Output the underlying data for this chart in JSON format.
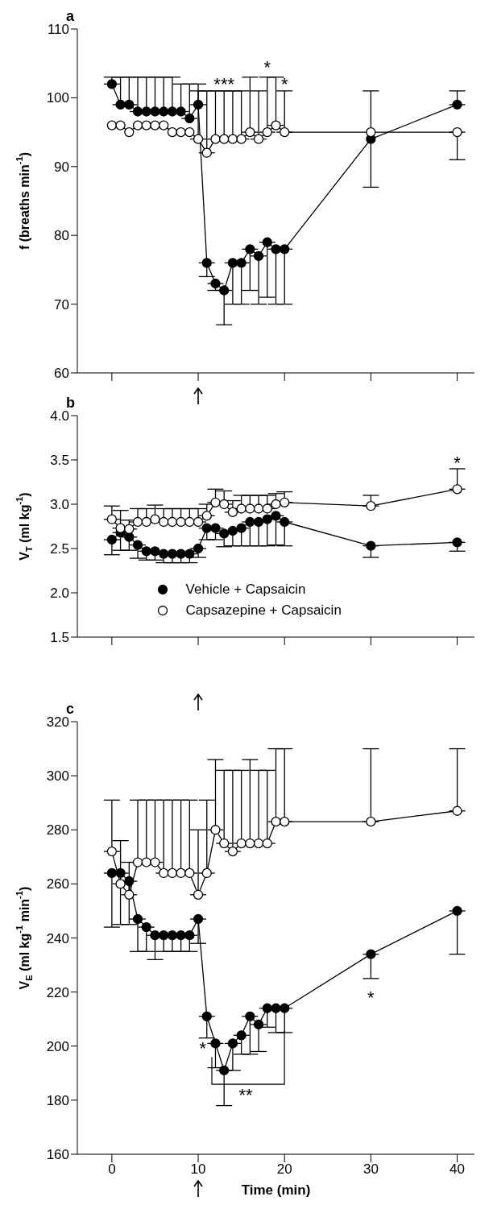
{
  "chart_data": [
    {
      "type": "line",
      "title": "a",
      "ylabel": "f (breaths min$^{-1}$)",
      "x": [
        0,
        1,
        2,
        3,
        4,
        5,
        6,
        7,
        8,
        9,
        10,
        11,
        12,
        13,
        14,
        15,
        16,
        17,
        18,
        19,
        20,
        30,
        40
      ],
      "xlim": [
        -4,
        42
      ],
      "xticks": [
        0,
        10,
        20,
        30,
        40
      ],
      "ylim": [
        60,
        110
      ],
      "yticks": [
        60,
        70,
        80,
        90,
        100,
        110
      ],
      "tick_labels": "y",
      "marker": "circle",
      "line_style": "solid",
      "legend": false,
      "series": [
        {
          "color": "#000000",
          "values": [
            102,
            99,
            99,
            98,
            98,
            98,
            98,
            98,
            98,
            97,
            99,
            76,
            73,
            72,
            76,
            76,
            78,
            77,
            79,
            78,
            78,
            94,
            99
          ],
          "errors": [
            [
              102,
              103
            ],
            [
              99,
              103
            ],
            [
              99,
              103
            ],
            [
              98,
              103
            ],
            [
              98,
              103
            ],
            [
              98,
              103
            ],
            [
              98,
              103
            ],
            [
              98,
              103
            ],
            [
              98,
              102
            ],
            [
              97,
              102
            ],
            [
              99,
              102
            ],
            [
              74,
              76
            ],
            [
              72,
              73
            ],
            [
              67,
              72
            ],
            [
              70,
              76
            ],
            [
              70,
              76
            ],
            [
              72,
              78
            ],
            [
              70,
              77
            ],
            [
              71,
              79
            ],
            [
              70,
              78
            ],
            [
              70,
              78
            ],
            [
              87,
              101
            ],
            [
              99,
              101
            ]
          ]
        },
        {
          "color": "#000000",
          "values": [
            96,
            96,
            95,
            96,
            96,
            96,
            96,
            95,
            95,
            95,
            94,
            92,
            94,
            94,
            94,
            94,
            95,
            94,
            95,
            96,
            95,
            95,
            95
          ],
          "errors": [
            null,
            null,
            null,
            null,
            null,
            null,
            null,
            null,
            null,
            null,
            [
              94,
              101
            ],
            [
              92,
              101
            ],
            [
              94,
              101
            ],
            [
              94,
              101
            ],
            [
              94,
              101
            ],
            [
              94,
              101
            ],
            [
              95,
              103
            ],
            [
              94,
              101
            ],
            [
              95,
              103
            ],
            [
              96,
              103
            ],
            [
              95,
              101
            ],
            null,
            [
              91,
              95
            ]
          ]
        }
      ],
      "annotations": [
        "***",
        "*",
        "*"
      ]
    },
    {
      "type": "line",
      "title": "b",
      "ylabel": "V$_{T}$ (ml kg$^{-1}$)",
      "x": [
        0,
        1,
        2,
        3,
        4,
        5,
        6,
        7,
        8,
        9,
        10,
        11,
        12,
        13,
        14,
        15,
        16,
        17,
        18,
        19,
        20,
        30,
        40
      ],
      "xlim": [
        -4,
        42
      ],
      "xticks": [
        0,
        10,
        20,
        30,
        40
      ],
      "ylim": [
        1.5,
        4.0
      ],
      "yticks": [
        {
          "value": 1.5,
          "label": "1.5"
        },
        {
          "value": 2,
          "label": "2.0"
        },
        {
          "value": 2.5,
          "label": "2.5"
        },
        {
          "value": 3,
          "label": "3.0"
        },
        {
          "value": 3.5,
          "label": "3.5"
        },
        {
          "value": 4,
          "label": "4.0"
        }
      ],
      "tick_labels": "y",
      "marker": "circle",
      "line_style": "solid",
      "legend": "bottom",
      "series": [
        {
          "name": "Vehicle + Capsaicin",
          "color": "#000000",
          "values": [
            2.6,
            2.68,
            2.63,
            2.54,
            2.47,
            2.47,
            2.44,
            2.44,
            2.44,
            2.44,
            2.5,
            2.73,
            2.73,
            2.67,
            2.7,
            2.73,
            2.8,
            2.8,
            2.83,
            2.87,
            2.8,
            2.53,
            2.57
          ],
          "errors": [
            [
              2.43,
              2.6
            ],
            [
              2.48,
              2.68
            ],
            [
              2.48,
              2.63
            ],
            [
              2.39,
              2.54
            ],
            [
              2.37,
              2.47
            ],
            [
              2.37,
              2.47
            ],
            [
              2.34,
              2.44
            ],
            [
              2.34,
              2.44
            ],
            [
              2.34,
              2.44
            ],
            [
              2.34,
              2.44
            ],
            [
              2.4,
              2.5
            ],
            [
              2.6,
              2.73
            ],
            [
              2.6,
              2.73
            ],
            [
              2.52,
              2.67
            ],
            [
              2.53,
              2.7
            ],
            [
              2.53,
              2.73
            ],
            [
              2.53,
              2.8
            ],
            [
              2.53,
              2.8
            ],
            [
              2.53,
              2.83
            ],
            [
              2.54,
              2.87
            ],
            [
              2.53,
              2.8
            ],
            [
              2.4,
              2.53
            ],
            [
              2.47,
              2.57
            ]
          ]
        },
        {
          "name": "Capsazepine + Capsaicin",
          "color": "#000000",
          "values": [
            2.83,
            2.73,
            2.72,
            2.8,
            2.8,
            2.83,
            2.8,
            2.8,
            2.8,
            2.8,
            2.8,
            2.87,
            3.02,
            3.0,
            2.91,
            2.95,
            2.95,
            2.95,
            2.95,
            3.0,
            3.02,
            2.98,
            3.17
          ],
          "errors": [
            [
              2.83,
              2.98
            ],
            [
              2.73,
              2.93
            ],
            [
              2.72,
              2.82
            ],
            [
              2.8,
              2.95
            ],
            [
              2.8,
              2.95
            ],
            [
              2.83,
              2.99
            ],
            [
              2.8,
              2.95
            ],
            [
              2.8,
              2.95
            ],
            [
              2.8,
              2.95
            ],
            [
              2.8,
              2.95
            ],
            [
              2.8,
              2.95
            ],
            [
              2.87,
              3.0
            ],
            [
              3.02,
              3.17
            ],
            [
              3.0,
              3.15
            ],
            [
              2.91,
              3.04
            ],
            [
              2.95,
              3.1
            ],
            [
              2.95,
              3.1
            ],
            [
              2.95,
              3.1
            ],
            [
              2.95,
              3.1
            ],
            [
              3.0,
              3.12
            ],
            [
              3.02,
              3.14
            ],
            [
              2.98,
              3.1
            ],
            [
              3.17,
              3.4
            ]
          ]
        }
      ],
      "annotations": [
        "*"
      ]
    },
    {
      "type": "line",
      "title": "c",
      "xlabel": "Time (min)",
      "ylabel": "V$_{E}$ (ml kg$^{-1}$ min$^{-1}$)",
      "x": [
        0,
        1,
        2,
        3,
        4,
        5,
        6,
        7,
        8,
        9,
        10,
        11,
        12,
        13,
        14,
        15,
        16,
        17,
        18,
        19,
        20,
        30,
        40
      ],
      "xlim": [
        -4,
        42
      ],
      "xticks": [
        0,
        10,
        20,
        30,
        40
      ],
      "ylim": [
        160,
        320
      ],
      "yticks": [
        160,
        180,
        200,
        220,
        240,
        260,
        280,
        300,
        320
      ],
      "marker": "circle",
      "line_style": "solid",
      "legend": false,
      "series": [
        {
          "color": "#000000",
          "values": [
            264,
            264,
            261,
            247,
            244,
            241,
            241,
            241,
            241,
            241,
            247,
            211,
            201,
            191,
            201,
            204,
            211,
            208,
            214,
            214,
            214,
            234,
            250
          ],
          "errors": [
            [
              244,
              264
            ],
            [
              245,
              264
            ],
            [
              245,
              261
            ],
            [
              235,
              247
            ],
            [
              235,
              244
            ],
            [
              232,
              241
            ],
            [
              235,
              241
            ],
            [
              235,
              241
            ],
            [
              235,
              241
            ],
            [
              235,
              241
            ],
            [
              238,
              247
            ],
            [
              203,
              211
            ],
            [
              192,
              201
            ],
            [
              178,
              191
            ],
            [
              191,
              201
            ],
            [
              197,
              204
            ],
            [
              197,
              211
            ],
            [
              198,
              208
            ],
            [
              207,
              214
            ],
            [
              205,
              214
            ],
            [
              205,
              214
            ],
            [
              225,
              234
            ],
            [
              234,
              250
            ]
          ]
        },
        {
          "color": "#000000",
          "values": [
            272,
            260,
            256,
            268,
            268,
            268,
            264,
            264,
            264,
            264,
            256,
            264,
            280,
            275,
            272,
            275,
            275,
            275,
            275,
            283,
            283,
            283,
            287
          ],
          "errors": [
            [
              272,
              291
            ],
            [
              260,
              276
            ],
            [
              256,
              268
            ],
            [
              268,
              291
            ],
            [
              268,
              291
            ],
            [
              268,
              291
            ],
            [
              264,
              291
            ],
            [
              264,
              291
            ],
            [
              264,
              291
            ],
            [
              264,
              291
            ],
            [
              256,
              280
            ],
            [
              264,
              291
            ],
            [
              280,
              306
            ],
            [
              275,
              302
            ],
            [
              272,
              302
            ],
            [
              275,
              302
            ],
            [
              275,
              306
            ],
            [
              275,
              302
            ],
            [
              275,
              302
            ],
            [
              283,
              310
            ],
            [
              283,
              310
            ],
            [
              283,
              310
            ],
            [
              287,
              310
            ]
          ]
        }
      ],
      "annotations": [
        {
          "text": "*",
          "x": 12,
          "y": 201
        },
        "**",
        "*"
      ]
    }
  ]
}
